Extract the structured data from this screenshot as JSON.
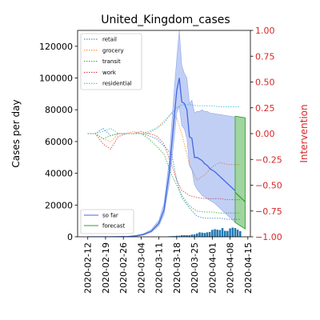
{
  "chart_data": {
    "type": "line",
    "title": "United_Kingdom_cases",
    "ylabel": "Cases per day",
    "y2label": "Intervention",
    "ylim": [
      0,
      130000
    ],
    "y2lim": [
      -1.0,
      1.0
    ],
    "xlim": [
      "2020-02-08",
      "2020-04-16"
    ],
    "y_ticks": [
      0,
      20000,
      40000,
      60000,
      80000,
      100000,
      120000
    ],
    "y_tick_labels": [
      "0",
      "20000",
      "40000",
      "60000",
      "80000",
      "100000",
      "120000"
    ],
    "y2_ticks": [
      1.0,
      0.75,
      0.5,
      0.25,
      0.0,
      -0.25,
      -0.5,
      -0.75,
      -1.0
    ],
    "y2_tick_labels": [
      "1.00",
      "0.75",
      "0.50",
      "0.25",
      "0.00",
      "−0.25",
      "−0.50",
      "−0.75",
      "−1.00"
    ],
    "x_ticks": [
      "2020-02-12",
      "2020-02-19",
      "2020-02-26",
      "2020-03-04",
      "2020-03-11",
      "2020-03-18",
      "2020-03-25",
      "2020-04-01",
      "2020-04-08",
      "2020-04-15"
    ],
    "legend_top": {
      "placement": "top-left",
      "entries": [
        {
          "label": "retail",
          "color": "#1f77b4"
        },
        {
          "label": "grocery",
          "color": "#ff7f0e"
        },
        {
          "label": "transit",
          "color": "#2ca02c"
        },
        {
          "label": "work",
          "color": "#d62728"
        },
        {
          "label": "residential",
          "color": "#17becf"
        }
      ]
    },
    "legend_bottom": {
      "placement": "bottom-left",
      "entries": [
        {
          "label": "so far",
          "color": "#4169e1"
        },
        {
          "label": "forecast",
          "color": "#2ca02c"
        }
      ]
    },
    "so_far": {
      "color": "#4169e1",
      "dates": [
        "2020-02-12",
        "2020-02-20",
        "2020-02-28",
        "2020-03-02",
        "2020-03-05",
        "2020-03-08",
        "2020-03-11",
        "2020-03-13",
        "2020-03-15",
        "2020-03-17",
        "2020-03-18",
        "2020-03-19",
        "2020-03-20",
        "2020-03-21",
        "2020-03-22",
        "2020-03-23",
        "2020-03-24",
        "2020-03-25",
        "2020-03-26",
        "2020-03-27",
        "2020-03-28",
        "2020-03-29",
        "2020-03-30",
        "2020-03-31",
        "2020-04-02",
        "2020-04-04",
        "2020-04-06",
        "2020-04-08",
        "2020-04-10"
      ],
      "mean": [
        0,
        0,
        200,
        600,
        1500,
        3500,
        8500,
        17000,
        40000,
        75000,
        92000,
        100000,
        85000,
        84000,
        80000,
        63000,
        62000,
        50000,
        50000,
        49000,
        48000,
        46000,
        45000,
        43000,
        41000,
        38000,
        35000,
        32000,
        29000
      ],
      "lower": [
        0,
        0,
        100,
        400,
        1100,
        2800,
        7000,
        14000,
        33000,
        62000,
        78000,
        82000,
        70000,
        68000,
        62000,
        45000,
        42000,
        33000,
        30000,
        28000,
        26000,
        25000,
        24000,
        23000,
        21000,
        18000,
        15000,
        12000,
        9000
      ],
      "upper": [
        0,
        0,
        300,
        900,
        2000,
        4500,
        10500,
        21000,
        48000,
        92000,
        112000,
        130000,
        108000,
        103000,
        100000,
        84000,
        86000,
        78000,
        79000,
        79000,
        80000,
        79000,
        79000,
        78000,
        77500,
        77000,
        76500,
        76000,
        75500
      ]
    },
    "forecast": {
      "color": "#2ca02c",
      "dates": [
        "2020-04-10",
        "2020-04-12",
        "2020-04-14"
      ],
      "mean": [
        28000,
        25000,
        22000
      ],
      "lower": [
        9000,
        7000,
        5000
      ],
      "upper": [
        76000,
        75500,
        75000
      ]
    },
    "interventions": {
      "dates": [
        "2020-02-12",
        "2020-02-15",
        "2020-02-18",
        "2020-02-21",
        "2020-02-24",
        "2020-02-27",
        "2020-03-01",
        "2020-03-04",
        "2020-03-07",
        "2020-03-10",
        "2020-03-13",
        "2020-03-16",
        "2020-03-18",
        "2020-03-20",
        "2020-03-23",
        "2020-03-26",
        "2020-03-29",
        "2020-04-01",
        "2020-04-04",
        "2020-04-07",
        "2020-04-10",
        "2020-04-12"
      ],
      "series": [
        {
          "name": "retail",
          "color": "#1f77b4",
          "values": [
            0.0,
            0.0,
            0.05,
            -0.02,
            0.0,
            0.0,
            0.0,
            0.0,
            -0.02,
            -0.05,
            -0.12,
            -0.2,
            -0.45,
            -0.62,
            -0.72,
            -0.8,
            -0.82,
            -0.82,
            -0.82,
            -0.83,
            -0.83,
            -0.83
          ]
        },
        {
          "name": "grocery",
          "color": "#ff7f0e",
          "values": [
            0.0,
            0.0,
            -0.05,
            -0.08,
            0.0,
            0.0,
            0.02,
            0.0,
            0.0,
            0.05,
            0.12,
            0.2,
            0.15,
            0.0,
            -0.3,
            -0.45,
            -0.4,
            -0.32,
            -0.28,
            -0.3,
            -0.3,
            -0.3
          ]
        },
        {
          "name": "transit",
          "color": "#2ca02c",
          "values": [
            0.0,
            0.0,
            -0.05,
            -0.02,
            0.0,
            0.0,
            0.0,
            0.0,
            -0.05,
            -0.12,
            -0.2,
            -0.4,
            -0.5,
            -0.6,
            -0.7,
            -0.75,
            -0.76,
            -0.76,
            -0.77,
            -0.77,
            -0.77,
            -0.77
          ]
        },
        {
          "name": "work",
          "color": "#d62728",
          "values": [
            0.0,
            0.0,
            -0.1,
            -0.15,
            -0.03,
            0.0,
            0.0,
            0.02,
            0.0,
            -0.02,
            -0.1,
            -0.3,
            -0.45,
            -0.55,
            -0.6,
            -0.62,
            -0.63,
            -0.63,
            -0.63,
            -0.64,
            -0.64,
            -0.64
          ]
        },
        {
          "name": "residential",
          "color": "#17becf",
          "values": [
            0.0,
            0.0,
            0.02,
            0.05,
            0.0,
            0.0,
            0.0,
            0.0,
            0.02,
            0.05,
            0.1,
            0.2,
            0.25,
            0.28,
            0.28,
            0.27,
            0.27,
            0.27,
            0.26,
            0.26,
            0.26,
            0.26
          ]
        }
      ]
    },
    "daily_bars": {
      "color": "#1f77b4",
      "dates": [
        "2020-03-15",
        "2020-03-16",
        "2020-03-17",
        "2020-03-18",
        "2020-03-19",
        "2020-03-20",
        "2020-03-21",
        "2020-03-22",
        "2020-03-23",
        "2020-03-24",
        "2020-03-25",
        "2020-03-26",
        "2020-03-27",
        "2020-03-28",
        "2020-03-29",
        "2020-03-30",
        "2020-03-31",
        "2020-04-01",
        "2020-04-02",
        "2020-04-03",
        "2020-04-04",
        "2020-04-05",
        "2020-04-06",
        "2020-04-07",
        "2020-04-08",
        "2020-04-09",
        "2020-04-10",
        "2020-04-11",
        "2020-04-12"
      ],
      "values": [
        300,
        400,
        500,
        650,
        700,
        1000,
        1000,
        1000,
        1000,
        1400,
        1500,
        2100,
        2800,
        2600,
        2400,
        2800,
        3000,
        4400,
        4800,
        4500,
        4300,
        5500,
        3800,
        3700,
        5300,
        5800,
        5500,
        4500,
        3600
      ]
    }
  }
}
